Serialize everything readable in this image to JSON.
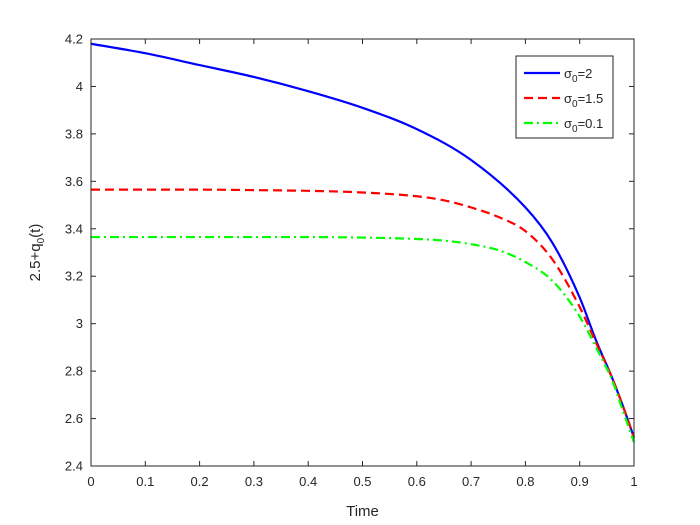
{
  "chart_data": {
    "type": "line",
    "title": "",
    "xlabel": "Time",
    "ylabel": {
      "base": "2.5+q",
      "sub": "0",
      "tail": "(t)"
    },
    "xlim": [
      0,
      1
    ],
    "ylim": [
      2.4,
      4.2
    ],
    "xticks": [
      "0",
      "0.1",
      "0.2",
      "0.3",
      "0.4",
      "0.5",
      "0.6",
      "0.7",
      "0.8",
      "0.9",
      "1"
    ],
    "yticks": [
      "2.4",
      "2.6",
      "2.8",
      "3",
      "3.2",
      "3.4",
      "3.6",
      "3.8",
      "4",
      "4.2"
    ],
    "grid": false,
    "legend_position": "top-right",
    "series": [
      {
        "name": {
          "base": "σ",
          "sub": "0",
          "tail": "=2"
        },
        "color": "#0000ff",
        "line_style": "solid",
        "x": [
          0,
          0.1,
          0.2,
          0.3,
          0.4,
          0.5,
          0.6,
          0.7,
          0.8,
          0.85,
          0.9,
          0.93,
          0.96,
          0.98,
          1.0
        ],
        "y": [
          4.18,
          4.14,
          4.09,
          4.04,
          3.98,
          3.91,
          3.82,
          3.69,
          3.49,
          3.34,
          3.11,
          2.93,
          2.77,
          2.65,
          2.52
        ]
      },
      {
        "name": {
          "base": "σ",
          "sub": "0",
          "tail": "=1.5"
        },
        "color": "#ff0000",
        "line_style": "dashed",
        "x": [
          0,
          0.1,
          0.2,
          0.3,
          0.4,
          0.5,
          0.6,
          0.65,
          0.7,
          0.75,
          0.8,
          0.85,
          0.9,
          0.93,
          0.96,
          0.98,
          1.0
        ],
        "y": [
          3.565,
          3.565,
          3.565,
          3.563,
          3.56,
          3.553,
          3.537,
          3.52,
          3.49,
          3.45,
          3.39,
          3.27,
          3.07,
          2.92,
          2.77,
          2.65,
          2.52
        ]
      },
      {
        "name": {
          "base": "σ",
          "sub": "0",
          "tail": "=0.1"
        },
        "color": "#00ff00",
        "line_style": "dash-dot",
        "x": [
          0,
          0.1,
          0.2,
          0.3,
          0.4,
          0.5,
          0.6,
          0.65,
          0.7,
          0.75,
          0.8,
          0.85,
          0.9,
          0.93,
          0.96,
          0.98,
          1.0
        ],
        "y": [
          3.365,
          3.365,
          3.365,
          3.365,
          3.365,
          3.363,
          3.357,
          3.35,
          3.335,
          3.31,
          3.26,
          3.18,
          3.03,
          2.9,
          2.76,
          2.63,
          2.5
        ]
      }
    ]
  }
}
